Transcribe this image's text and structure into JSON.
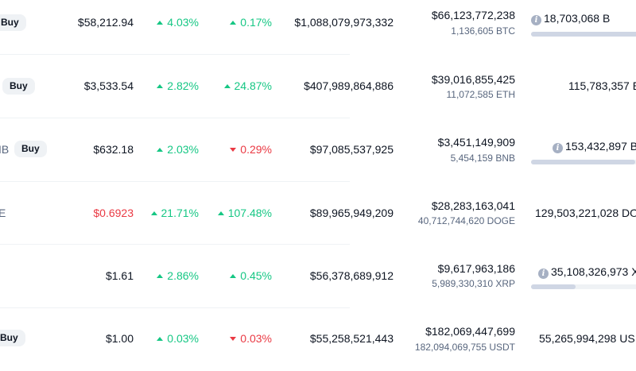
{
  "buy_label": "Buy",
  "rows": [
    {
      "symbol_fragment": "",
      "price": "$58,212.94",
      "price_color": "#0d1421",
      "change_24h": "4.03%",
      "change_24h_dir": "up",
      "change_7d": "0.17%",
      "change_7d_dir": "up",
      "market_cap": "$1,088,079,973,332",
      "volume_usd": "$66,123,772,238",
      "volume_coin": "1,136,605 BTC",
      "supply": "18,703,068 B",
      "supply_info_icon": "info-icon",
      "supply_progress": 0.89
    },
    {
      "symbol_fragment": "",
      "price": "$3,533.54",
      "price_color": "#0d1421",
      "change_24h": "2.82%",
      "change_24h_dir": "up",
      "change_7d": "24.87%",
      "change_7d_dir": "up",
      "market_cap": "$407,989,864,886",
      "volume_usd": "$39,016,855,425",
      "volume_coin": "11,072,585 ETH",
      "supply": "115,783,357 E",
      "supply_info_icon": "",
      "supply_progress": null
    },
    {
      "symbol_fragment": "IB",
      "price": "$632.18",
      "price_color": "#0d1421",
      "change_24h": "2.03%",
      "change_24h_dir": "up",
      "change_7d": "0.29%",
      "change_7d_dir": "down",
      "market_cap": "$97,085,537,925",
      "volume_usd": "$3,451,149,909",
      "volume_coin": "5,454,159 BNB",
      "supply": "153,432,897 B",
      "supply_info_icon": "info-icon",
      "supply_progress": 0.82
    },
    {
      "symbol_fragment": "E",
      "price": "$0.6923",
      "price_color": "#ea3943",
      "change_24h": "21.71%",
      "change_24h_dir": "up",
      "change_7d": "107.48%",
      "change_7d_dir": "up",
      "market_cap": "$89,965,949,209",
      "volume_usd": "$28,283,163,041",
      "volume_coin": "40,712,744,620 DOGE",
      "supply": "129,503,221,028 DO",
      "supply_info_icon": "",
      "supply_progress": null
    },
    {
      "symbol_fragment": "",
      "price": "$1.61",
      "price_color": "#0d1421",
      "change_24h": "2.86%",
      "change_24h_dir": "up",
      "change_7d": "0.45%",
      "change_7d_dir": "up",
      "market_cap": "$56,378,689,912",
      "volume_usd": "$9,617,963,186",
      "volume_coin": "5,989,330,310 XRP",
      "supply": "35,108,326,973 X",
      "supply_info_icon": "info-icon",
      "supply_progress": 0.35
    },
    {
      "symbol_fragment": "",
      "price": "$1.00",
      "price_color": "#0d1421",
      "change_24h": "0.03%",
      "change_24h_dir": "up",
      "change_7d": "0.03%",
      "change_7d_dir": "down",
      "market_cap": "$55,258,521,443",
      "volume_usd": "$182,069,447,699",
      "volume_coin": "182,094,069,755 USDT",
      "supply": "55,265,994,298 US",
      "supply_info_icon": "",
      "supply_progress": null
    }
  ]
}
